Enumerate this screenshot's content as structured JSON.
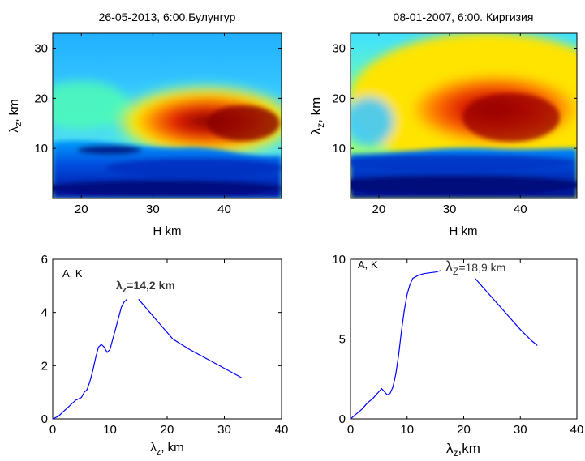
{
  "chart_data": [
    {
      "type": "heatmap",
      "title": "26-05-2013, 6:00.Булунгур",
      "xlabel": "H  km",
      "ylabel": "λz, km",
      "xlim": [
        16,
        48
      ],
      "ylim": [
        0,
        33
      ],
      "xticks": [
        "20",
        "30",
        "40"
      ],
      "yticks": [
        "10",
        "20",
        "30"
      ],
      "colormap": "jet",
      "hotspot": {
        "H_km": 39,
        "lambda_km": 14
      }
    },
    {
      "type": "heatmap",
      "title": "08-01-2007, 6:00. Киргизия",
      "xlabel": "H  km",
      "ylabel": "λz, km",
      "xlim": [
        16,
        48
      ],
      "ylim": [
        0,
        33
      ],
      "xticks": [
        "20",
        "30",
        "40"
      ],
      "yticks": [
        "10",
        "20",
        "30"
      ],
      "colormap": "jet",
      "hotspot": {
        "H_km": 39,
        "lambda_km": 15
      }
    },
    {
      "type": "line",
      "xlabel": "λz, km",
      "ylabel_inner": "A, K",
      "annotation": "λz=14,2 km",
      "xlim": [
        0,
        40
      ],
      "ylim": [
        0,
        6
      ],
      "xticks": [
        "0",
        "10",
        "20",
        "30",
        "40"
      ],
      "yticks": [
        "0",
        "2",
        "4",
        "6"
      ],
      "color": "#0000ff",
      "series": [
        {
          "x": [
            0,
            1,
            2,
            3,
            4,
            5,
            5.5,
            6,
            6.5,
            7,
            7.5,
            8,
            8.5,
            9,
            9.5,
            10,
            10.5,
            11,
            11.5,
            12,
            12.5,
            13
          ],
          "y": [
            0,
            0.1,
            0.3,
            0.5,
            0.7,
            0.8,
            1.0,
            1.1,
            1.4,
            1.8,
            2.3,
            2.7,
            2.8,
            2.7,
            2.5,
            2.6,
            3.0,
            3.4,
            3.8,
            4.2,
            4.4,
            4.5
          ]
        },
        {
          "x": [
            15,
            17,
            19,
            21,
            22.5,
            24,
            27,
            30,
            33
          ],
          "y": [
            4.5,
            4.0,
            3.5,
            3.0,
            2.8,
            2.6,
            2.25,
            1.9,
            1.55
          ]
        }
      ]
    },
    {
      "type": "line",
      "xlabel": "λz,km",
      "ylabel_inner": "A, K",
      "annotation": "λz=18,9 km",
      "xlim": [
        0,
        40
      ],
      "ylim": [
        0,
        10
      ],
      "xticks": [
        "0",
        "10",
        "20",
        "30",
        "40"
      ],
      "yticks": [
        "0",
        "5",
        "10"
      ],
      "color": "#0000ff",
      "series": [
        {
          "x": [
            0,
            1,
            2,
            3,
            4,
            5,
            5.5,
            6,
            6.5,
            7,
            7.5,
            8,
            8.5,
            9,
            9.5,
            10,
            10.5,
            11,
            12,
            13,
            14,
            15,
            16
          ],
          "y": [
            0,
            0.3,
            0.6,
            1.0,
            1.3,
            1.7,
            1.9,
            1.7,
            1.5,
            1.6,
            2.0,
            2.8,
            4.0,
            5.5,
            6.8,
            7.8,
            8.4,
            8.8,
            9.0,
            9.1,
            9.15,
            9.2,
            9.3
          ]
        },
        {
          "x": [
            22,
            24,
            26,
            28,
            30,
            32,
            33
          ],
          "y": [
            8.8,
            8.0,
            7.2,
            6.4,
            5.6,
            4.9,
            4.6
          ]
        }
      ]
    }
  ]
}
